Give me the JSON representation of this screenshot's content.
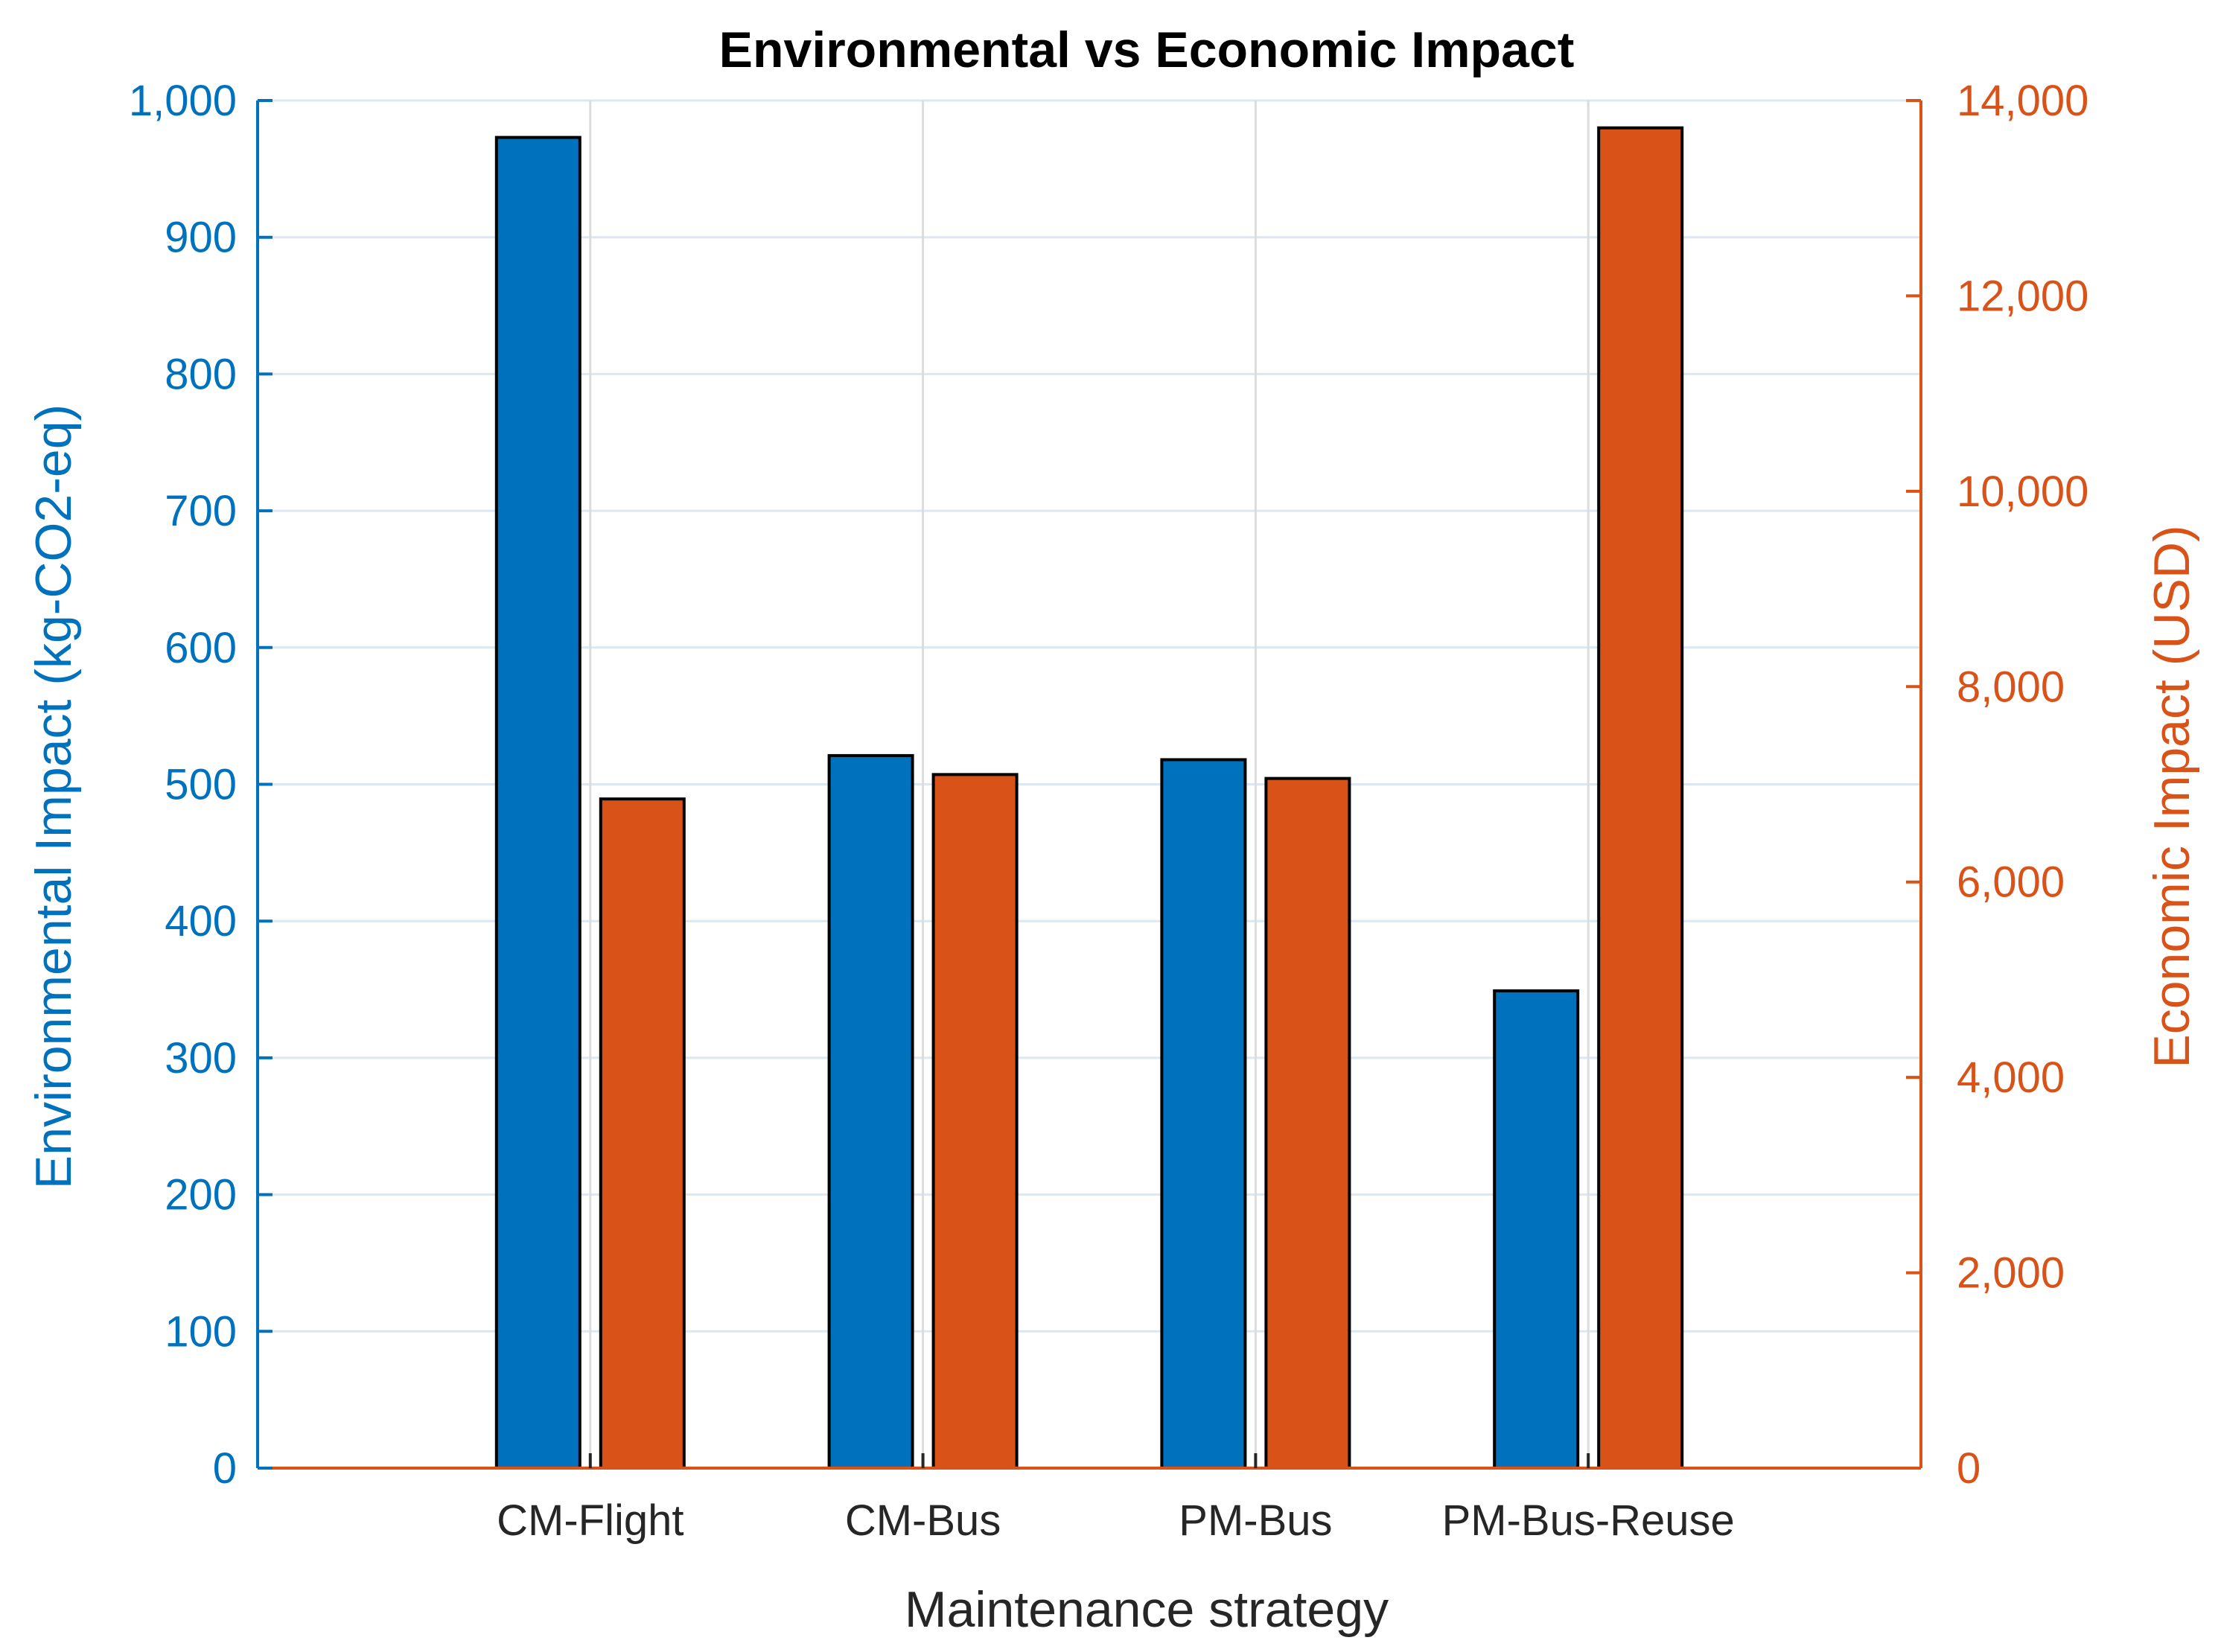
{
  "chart_data": {
    "type": "bar",
    "title": "Environmental vs Economic Impact",
    "xlabel": "Maintenance strategy",
    "categories": [
      "CM-Flight",
      "CM-Bus",
      "PM-Bus",
      "PM-Bus-Reuse"
    ],
    "grid": true,
    "axes": {
      "left": {
        "label": "Environmental Impact (kg-CO2-eq)",
        "ylim": [
          0,
          1000
        ],
        "ticks": [
          0,
          100,
          200,
          300,
          400,
          500,
          600,
          700,
          800,
          900,
          1000
        ],
        "tick_labels": [
          "0",
          "100",
          "200",
          "300",
          "400",
          "500",
          "600",
          "700",
          "800",
          "900",
          "1,000"
        ],
        "color": "#0072BD"
      },
      "right": {
        "label": "Economic Impact (USD)",
        "ylim": [
          0,
          14000
        ],
        "ticks": [
          0,
          2000,
          4000,
          6000,
          8000,
          10000,
          12000,
          14000
        ],
        "tick_labels": [
          "0",
          "2,000",
          "4,000",
          "6,000",
          "8,000",
          "10,000",
          "12,000",
          "14,000"
        ],
        "color": "#D95319"
      }
    },
    "series": [
      {
        "name": "Environmental Impact",
        "axis": "left",
        "color": "#0072BD",
        "values": [
          973,
          521,
          518,
          349
        ]
      },
      {
        "name": "Economic Impact",
        "axis": "right",
        "color": "#D95319",
        "values": [
          6850,
          7100,
          7060,
          13720
        ]
      }
    ]
  }
}
